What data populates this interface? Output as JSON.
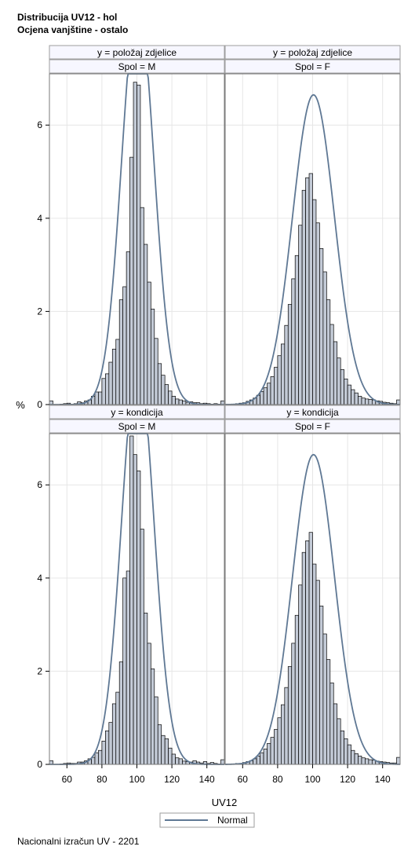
{
  "title": "Distribucija UV12 - hol",
  "subtitle": "Ocjena vanjštine - ostalo",
  "footnote": "Nacionalni izračun UV - 2201",
  "chart_data": {
    "type": "histogram",
    "xlabel": "UV12",
    "ylabel": "%",
    "xlim": [
      50,
      150
    ],
    "ylim": [
      0,
      7.1
    ],
    "x_ticks": [
      60,
      80,
      100,
      120,
      140
    ],
    "y_ticks": [
      0,
      2,
      4,
      6
    ],
    "grid": true,
    "bin_width": 2,
    "legend": {
      "position": "bottom-center",
      "entries": [
        {
          "name": "Normal",
          "color": "#5f7894"
        }
      ]
    },
    "colors": {
      "bar_fill": "#c3cad6",
      "curve": "#5f7894"
    },
    "panels": [
      {
        "row_label": "y = položaj zdjelice",
        "col_label": "Spol = M",
        "bins": [
          {
            "x": 51,
            "y": 0.08
          },
          {
            "x": 53,
            "y": 0
          },
          {
            "x": 55,
            "y": 0
          },
          {
            "x": 57,
            "y": 0.01
          },
          {
            "x": 59,
            "y": 0.02
          },
          {
            "x": 61,
            "y": 0.03
          },
          {
            "x": 63,
            "y": 0.01
          },
          {
            "x": 65,
            "y": 0.02
          },
          {
            "x": 67,
            "y": 0.06
          },
          {
            "x": 69,
            "y": 0.04
          },
          {
            "x": 71,
            "y": 0.08
          },
          {
            "x": 73,
            "y": 0.1
          },
          {
            "x": 75,
            "y": 0.18
          },
          {
            "x": 77,
            "y": 0.27
          },
          {
            "x": 79,
            "y": 0.27
          },
          {
            "x": 81,
            "y": 0.56
          },
          {
            "x": 83,
            "y": 0.66
          },
          {
            "x": 85,
            "y": 0.91
          },
          {
            "x": 87,
            "y": 1.19
          },
          {
            "x": 89,
            "y": 1.4
          },
          {
            "x": 91,
            "y": 2.25
          },
          {
            "x": 93,
            "y": 2.53
          },
          {
            "x": 95,
            "y": 3.28
          },
          {
            "x": 97,
            "y": 5.31
          },
          {
            "x": 99,
            "y": 6.92
          },
          {
            "x": 101,
            "y": 6.86
          },
          {
            "x": 103,
            "y": 4.23
          },
          {
            "x": 105,
            "y": 3.44
          },
          {
            "x": 107,
            "y": 2.63
          },
          {
            "x": 109,
            "y": 2.05
          },
          {
            "x": 111,
            "y": 1.42
          },
          {
            "x": 113,
            "y": 0.88
          },
          {
            "x": 115,
            "y": 0.63
          },
          {
            "x": 117,
            "y": 0.43
          },
          {
            "x": 119,
            "y": 0.29
          },
          {
            "x": 121,
            "y": 0.18
          },
          {
            "x": 123,
            "y": 0.12
          },
          {
            "x": 125,
            "y": 0.1
          },
          {
            "x": 127,
            "y": 0.08
          },
          {
            "x": 129,
            "y": 0.05
          },
          {
            "x": 131,
            "y": 0.06
          },
          {
            "x": 133,
            "y": 0.04
          },
          {
            "x": 135,
            "y": 0.04
          },
          {
            "x": 137,
            "y": 0.02
          },
          {
            "x": 139,
            "y": 0.03
          },
          {
            "x": 141,
            "y": 0.02
          },
          {
            "x": 143,
            "y": 0.01
          },
          {
            "x": 145,
            "y": 0.02
          },
          {
            "x": 147,
            "y": 0.01
          },
          {
            "x": 149,
            "y": 0.08
          }
        ],
        "normal": {
          "mean": 100.5,
          "sd": 9.2
        }
      },
      {
        "row_label": "y = položaj zdjelice",
        "col_label": "Spol = F",
        "bins": [
          {
            "x": 51,
            "y": 0
          },
          {
            "x": 53,
            "y": 0
          },
          {
            "x": 55,
            "y": 0.01
          },
          {
            "x": 57,
            "y": 0.02
          },
          {
            "x": 59,
            "y": 0.03
          },
          {
            "x": 61,
            "y": 0.04
          },
          {
            "x": 63,
            "y": 0.07
          },
          {
            "x": 65,
            "y": 0.1
          },
          {
            "x": 67,
            "y": 0.14
          },
          {
            "x": 69,
            "y": 0.2
          },
          {
            "x": 71,
            "y": 0.28
          },
          {
            "x": 73,
            "y": 0.36
          },
          {
            "x": 75,
            "y": 0.46
          },
          {
            "x": 77,
            "y": 0.6
          },
          {
            "x": 79,
            "y": 0.8
          },
          {
            "x": 81,
            "y": 1.05
          },
          {
            "x": 83,
            "y": 1.3
          },
          {
            "x": 85,
            "y": 1.7
          },
          {
            "x": 87,
            "y": 2.15
          },
          {
            "x": 89,
            "y": 2.7
          },
          {
            "x": 91,
            "y": 3.2
          },
          {
            "x": 93,
            "y": 3.85
          },
          {
            "x": 95,
            "y": 4.6
          },
          {
            "x": 97,
            "y": 4.87
          },
          {
            "x": 99,
            "y": 4.96
          },
          {
            "x": 101,
            "y": 4.4
          },
          {
            "x": 103,
            "y": 3.9
          },
          {
            "x": 105,
            "y": 3.35
          },
          {
            "x": 107,
            "y": 2.85
          },
          {
            "x": 109,
            "y": 2.25
          },
          {
            "x": 111,
            "y": 1.72
          },
          {
            "x": 113,
            "y": 1.35
          },
          {
            "x": 115,
            "y": 1.0
          },
          {
            "x": 117,
            "y": 0.75
          },
          {
            "x": 119,
            "y": 0.55
          },
          {
            "x": 121,
            "y": 0.42
          },
          {
            "x": 123,
            "y": 0.32
          },
          {
            "x": 125,
            "y": 0.25
          },
          {
            "x": 127,
            "y": 0.18
          },
          {
            "x": 129,
            "y": 0.14
          },
          {
            "x": 131,
            "y": 0.12
          },
          {
            "x": 133,
            "y": 0.11
          },
          {
            "x": 135,
            "y": 0.1
          },
          {
            "x": 137,
            "y": 0.08
          },
          {
            "x": 139,
            "y": 0.07
          },
          {
            "x": 141,
            "y": 0.05
          },
          {
            "x": 143,
            "y": 0.04
          },
          {
            "x": 145,
            "y": 0.03
          },
          {
            "x": 147,
            "y": 0.02
          },
          {
            "x": 149,
            "y": 0.1
          }
        ],
        "normal": {
          "mean": 100.5,
          "sd": 12.0
        }
      },
      {
        "row_label": "y = kondicija",
        "col_label": "Spol = M",
        "bins": [
          {
            "x": 51,
            "y": 0.08
          },
          {
            "x": 53,
            "y": 0
          },
          {
            "x": 55,
            "y": 0
          },
          {
            "x": 57,
            "y": 0.01
          },
          {
            "x": 59,
            "y": 0.02
          },
          {
            "x": 61,
            "y": 0.03
          },
          {
            "x": 63,
            "y": 0.02
          },
          {
            "x": 65,
            "y": 0.02
          },
          {
            "x": 67,
            "y": 0.05
          },
          {
            "x": 69,
            "y": 0.05
          },
          {
            "x": 71,
            "y": 0.08
          },
          {
            "x": 73,
            "y": 0.12
          },
          {
            "x": 75,
            "y": 0.15
          },
          {
            "x": 77,
            "y": 0.25
          },
          {
            "x": 79,
            "y": 0.3
          },
          {
            "x": 81,
            "y": 0.5
          },
          {
            "x": 83,
            "y": 0.72
          },
          {
            "x": 85,
            "y": 0.9
          },
          {
            "x": 87,
            "y": 1.3
          },
          {
            "x": 89,
            "y": 1.55
          },
          {
            "x": 91,
            "y": 2.2
          },
          {
            "x": 93,
            "y": 4.0
          },
          {
            "x": 95,
            "y": 4.15
          },
          {
            "x": 97,
            "y": 7.05
          },
          {
            "x": 99,
            "y": 6.65
          },
          {
            "x": 101,
            "y": 6.3
          },
          {
            "x": 103,
            "y": 5.05
          },
          {
            "x": 105,
            "y": 3.25
          },
          {
            "x": 107,
            "y": 2.6
          },
          {
            "x": 109,
            "y": 2.05
          },
          {
            "x": 111,
            "y": 1.45
          },
          {
            "x": 113,
            "y": 0.85
          },
          {
            "x": 115,
            "y": 0.62
          },
          {
            "x": 117,
            "y": 0.55
          },
          {
            "x": 119,
            "y": 0.35
          },
          {
            "x": 121,
            "y": 0.22
          },
          {
            "x": 123,
            "y": 0.14
          },
          {
            "x": 125,
            "y": 0.12
          },
          {
            "x": 127,
            "y": 0.07
          },
          {
            "x": 129,
            "y": 0.06
          },
          {
            "x": 131,
            "y": 0.05
          },
          {
            "x": 133,
            "y": 0.08
          },
          {
            "x": 135,
            "y": 0.05
          },
          {
            "x": 137,
            "y": 0.03
          },
          {
            "x": 139,
            "y": 0.06
          },
          {
            "x": 141,
            "y": 0.02
          },
          {
            "x": 143,
            "y": 0.04
          },
          {
            "x": 145,
            "y": 0.02
          },
          {
            "x": 147,
            "y": 0.01
          },
          {
            "x": 149,
            "y": 0.1
          }
        ],
        "normal": {
          "mean": 100.5,
          "sd": 9.2
        }
      },
      {
        "row_label": "y = kondicija",
        "col_label": "Spol = F",
        "bins": [
          {
            "x": 51,
            "y": 0
          },
          {
            "x": 53,
            "y": 0
          },
          {
            "x": 55,
            "y": 0.01
          },
          {
            "x": 57,
            "y": 0.02
          },
          {
            "x": 59,
            "y": 0.02
          },
          {
            "x": 61,
            "y": 0.04
          },
          {
            "x": 63,
            "y": 0.06
          },
          {
            "x": 65,
            "y": 0.08
          },
          {
            "x": 67,
            "y": 0.12
          },
          {
            "x": 69,
            "y": 0.18
          },
          {
            "x": 71,
            "y": 0.25
          },
          {
            "x": 73,
            "y": 0.33
          },
          {
            "x": 75,
            "y": 0.45
          },
          {
            "x": 77,
            "y": 0.58
          },
          {
            "x": 79,
            "y": 0.75
          },
          {
            "x": 81,
            "y": 1.0
          },
          {
            "x": 83,
            "y": 1.28
          },
          {
            "x": 85,
            "y": 1.65
          },
          {
            "x": 87,
            "y": 2.1
          },
          {
            "x": 89,
            "y": 2.6
          },
          {
            "x": 91,
            "y": 3.2
          },
          {
            "x": 93,
            "y": 3.85
          },
          {
            "x": 95,
            "y": 4.55
          },
          {
            "x": 97,
            "y": 4.8
          },
          {
            "x": 99,
            "y": 4.98
          },
          {
            "x": 101,
            "y": 4.3
          },
          {
            "x": 103,
            "y": 3.95
          },
          {
            "x": 105,
            "y": 3.4
          },
          {
            "x": 107,
            "y": 2.8
          },
          {
            "x": 109,
            "y": 2.25
          },
          {
            "x": 111,
            "y": 1.75
          },
          {
            "x": 113,
            "y": 1.3
          },
          {
            "x": 115,
            "y": 0.98
          },
          {
            "x": 117,
            "y": 0.72
          },
          {
            "x": 119,
            "y": 0.55
          },
          {
            "x": 121,
            "y": 0.42
          },
          {
            "x": 123,
            "y": 0.3
          },
          {
            "x": 125,
            "y": 0.23
          },
          {
            "x": 127,
            "y": 0.18
          },
          {
            "x": 129,
            "y": 0.14
          },
          {
            "x": 131,
            "y": 0.12
          },
          {
            "x": 133,
            "y": 0.1
          },
          {
            "x": 135,
            "y": 0.09
          },
          {
            "x": 137,
            "y": 0.07
          },
          {
            "x": 139,
            "y": 0.06
          },
          {
            "x": 141,
            "y": 0.05
          },
          {
            "x": 143,
            "y": 0.04
          },
          {
            "x": 145,
            "y": 0.03
          },
          {
            "x": 147,
            "y": 0.03
          },
          {
            "x": 149,
            "y": 0.15
          }
        ],
        "normal": {
          "mean": 100.5,
          "sd": 12.0
        }
      }
    ]
  }
}
